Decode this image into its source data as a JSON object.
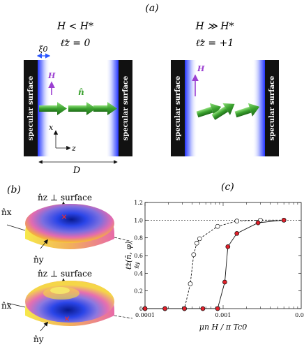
{
  "panel_a": {
    "label": "(a)",
    "left": {
      "condition": "H < H*",
      "lz": "ℓ̂z = 0",
      "xi": "ξ0",
      "H": "H",
      "n": "n̂"
    },
    "right": {
      "condition": "H ≫ H*",
      "lz": "ℓ̂z = +1",
      "H": "H"
    },
    "wall_label": "specular surface",
    "axis_x": "x",
    "axis_z": "z",
    "width": "D",
    "colors": {
      "wall": "#111111",
      "glow": "#3a4bff",
      "arrow": "#3aa12e",
      "field": "#9b3fd1"
    }
  },
  "panel_b": {
    "label": "(b)",
    "top": {
      "normal": "n̂z ⊥ surface",
      "nx": "n̂x",
      "ny": "n̂y"
    },
    "bottom": {
      "normal": "n̂z ⊥ surface",
      "nx": "n̂x",
      "ny": "n̂y"
    }
  },
  "panel_c": {
    "label": "(c)"
  },
  "chart_data": {
    "type": "line",
    "xscale": "log",
    "xlim": [
      0.0001,
      0.01
    ],
    "ylim": [
      0,
      1.2
    ],
    "xlabel": "μn H / π Tc0",
    "ylabel": "ℓ̂z(n̂, φ)",
    "ylabel_sub": "n̂y",
    "xticks": [
      "0.0001",
      "0.001",
      "0.01"
    ],
    "yticks": [
      "0",
      "0.2",
      "0.4",
      "0.6",
      "0.8",
      "1.0",
      "1.2"
    ],
    "reference_line": 1.0,
    "series": [
      {
        "style": "dashed",
        "marker": "open-circle",
        "x": [
          0.0001,
          0.00018,
          0.00032,
          0.00038,
          0.00042,
          0.00046,
          0.0005,
          0.00085,
          0.0015,
          0.003,
          0.006
        ],
        "y": [
          0,
          0,
          0,
          0.28,
          0.61,
          0.74,
          0.79,
          0.93,
          0.99,
          1.0,
          1.0
        ]
      },
      {
        "style": "solid",
        "marker": "red-filled",
        "x": [
          0.0001,
          0.00018,
          0.00032,
          0.00055,
          0.00085,
          0.00105,
          0.00115,
          0.0015,
          0.0028,
          0.006
        ],
        "y": [
          0,
          0,
          0,
          0,
          0,
          0.3,
          0.7,
          0.85,
          0.97,
          1.0
        ]
      }
    ]
  }
}
